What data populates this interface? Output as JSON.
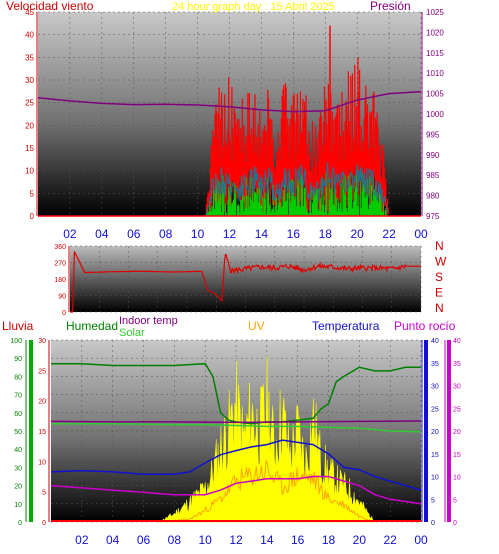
{
  "header": {
    "wind_title": "Velocidad viento",
    "graph_title": "24 hour graph day : 15 Abril 2025",
    "pressure_title": "Presión"
  },
  "colors": {
    "wind": "#ff0000",
    "wind_dark": "#2a6f8f",
    "wind_green": "#00cc00",
    "pressure": "#800080",
    "direction": "#e00000",
    "humidity": "#008000",
    "solar": "#33cc33",
    "uv": "#ffa500",
    "solar_fill": "#ffff00",
    "temperature": "#1010d0",
    "dewpoint": "#cc00cc",
    "indoor": "#800080",
    "rain": "#ff0000",
    "left_axis": "#cc0000",
    "right_axis": "#800080"
  },
  "legend3": {
    "rain": "Lluvia",
    "humidity": "Humedad",
    "indoor": "Indoor temp",
    "solar": "Solar",
    "uv": "UV",
    "temperature": "Temperatura",
    "dewpoint": "Punto rocío"
  },
  "chart_data": [
    {
      "type": "line",
      "title": "24 hour graph day : 15 Abril 2025",
      "x_ticks": [
        "02",
        "04",
        "06",
        "08",
        "10",
        "12",
        "14",
        "16",
        "18",
        "20",
        "22",
        "00"
      ],
      "y_left_ticks": [
        "0",
        "5",
        "10",
        "15",
        "20",
        "25",
        "30",
        "35",
        "40",
        "45"
      ],
      "y_right_ticks": [
        "975",
        "980",
        "985",
        "990",
        "995",
        "1000",
        "1005",
        "1010",
        "1015",
        "1020",
        "1025"
      ],
      "xlim": [
        0,
        24
      ],
      "ylim_left": [
        0,
        45
      ],
      "ylim_right": [
        975,
        1025
      ],
      "series": [
        {
          "name": "Velocidad viento",
          "axis": "left",
          "x": [
            0,
            10.5,
            11,
            11.5,
            12,
            12.5,
            13,
            13.5,
            14,
            14.5,
            15,
            15.5,
            16,
            16.5,
            17,
            17.5,
            18,
            18.5,
            19,
            19.5,
            20,
            20.5,
            21,
            21.5,
            22,
            24
          ],
          "y": [
            0,
            0,
            18,
            20,
            21,
            15,
            19,
            22,
            18,
            20,
            14,
            21,
            18,
            22,
            16,
            14,
            24,
            20,
            18,
            22,
            24,
            20,
            19,
            14,
            0,
            0
          ]
        },
        {
          "name": "Presión",
          "axis": "right",
          "x": [
            0,
            2,
            4,
            6,
            8,
            10,
            12,
            14,
            16,
            18,
            20,
            22,
            24
          ],
          "y": [
            1004,
            1003.2,
            1002.6,
            1002.3,
            1002.4,
            1002.2,
            1001.8,
            1001,
            1000.6,
            1000.8,
            1003.4,
            1005,
            1005.5
          ]
        }
      ]
    },
    {
      "type": "line",
      "y_ticks": [
        "0",
        "90",
        "180",
        "270",
        "360"
      ],
      "y_compass": [
        "N",
        "W",
        "S",
        "E",
        "N"
      ],
      "ylim": [
        0,
        360
      ],
      "series": [
        {
          "name": "Dirección viento",
          "x": [
            0,
            0.2,
            0.3,
            1,
            3,
            5,
            7,
            9,
            9.4,
            10,
            10.4,
            10.6,
            11,
            12,
            13,
            14,
            15,
            16,
            17,
            18,
            19,
            20,
            21,
            22,
            23,
            24
          ],
          "y": [
            0,
            0,
            330,
            215,
            220,
            222,
            218,
            222,
            120,
            95,
            60,
            320,
            225,
            235,
            245,
            240,
            250,
            230,
            250,
            245,
            235,
            240,
            240,
            235,
            250,
            250
          ]
        }
      ]
    },
    {
      "type": "line",
      "x_ticks": [
        "02",
        "04",
        "06",
        "08",
        "10",
        "12",
        "14",
        "16",
        "18",
        "20",
        "22",
        "00"
      ],
      "y_ticks_lluvia": [
        "0",
        "10",
        "20",
        "30",
        "40",
        "50",
        "60",
        "70",
        "80",
        "90",
        "100"
      ],
      "y_ticks_inner": [
        "0",
        "5",
        "10",
        "15",
        "20",
        "25",
        "30"
      ],
      "y_ticks_right": [
        "0",
        "5",
        "10",
        "15",
        "20",
        "25",
        "30",
        "35",
        "40"
      ],
      "xlim": [
        0,
        24
      ],
      "series": [
        {
          "name": "Humedad",
          "axis": "lluvia",
          "x": [
            0,
            2,
            4,
            6,
            8,
            10,
            10.5,
            11,
            11.5,
            12,
            13,
            14,
            15,
            16,
            17,
            17.5,
            18,
            18.5,
            19,
            20,
            21,
            22,
            23,
            24
          ],
          "y": [
            87,
            87,
            86,
            86,
            86,
            87,
            80,
            60,
            56,
            55,
            54,
            55,
            55,
            56,
            57,
            62,
            65,
            77,
            80,
            85,
            83,
            83,
            85,
            85
          ]
        },
        {
          "name": "Solar",
          "axis": "lluvia",
          "x": [
            0,
            4,
            8,
            10,
            12,
            14,
            16,
            18,
            20,
            22,
            24
          ],
          "y": [
            54,
            54,
            53.5,
            53.5,
            53,
            52.5,
            52.5,
            52,
            51.5,
            50,
            49.5
          ]
        },
        {
          "name": "Indoor temp",
          "axis": "right",
          "x": [
            0,
            4,
            8,
            12,
            16,
            20,
            24
          ],
          "y": [
            22.1,
            22,
            22,
            21.9,
            22,
            22.1,
            22.2
          ]
        },
        {
          "name": "Temperatura",
          "axis": "right",
          "x": [
            0,
            2,
            4,
            6,
            8,
            9,
            10,
            11,
            12,
            13,
            14,
            15,
            16,
            17,
            18,
            19,
            20,
            21,
            22,
            23,
            24
          ],
          "y": [
            11,
            11.3,
            11,
            10.5,
            10.5,
            11,
            13,
            14.8,
            15.7,
            16.5,
            17,
            18,
            17.5,
            17,
            15,
            12,
            11.5,
            10,
            9,
            8,
            7
          ]
        },
        {
          "name": "Punto rocío",
          "axis": "right",
          "x": [
            0,
            2,
            4,
            6,
            8,
            10,
            11,
            12,
            13,
            14,
            15,
            16,
            17,
            18,
            19,
            20,
            21,
            22,
            23,
            24
          ],
          "y": [
            8,
            7.5,
            7,
            6.5,
            6,
            6,
            7,
            8.5,
            9,
            9.5,
            9.5,
            9.5,
            10,
            10,
            9,
            8,
            6,
            5,
            4.5,
            4
          ]
        },
        {
          "name": "Solar",
          "axis": "lluvia",
          "fill": true,
          "x": [
            7,
            8,
            9,
            10,
            10.5,
            11,
            11.5,
            12,
            12.5,
            13,
            13.5,
            14,
            14.5,
            15,
            15.5,
            16,
            16.5,
            17,
            17.5,
            18,
            18.5,
            19,
            19.5,
            20,
            20.5,
            21
          ],
          "y": [
            0,
            5,
            12,
            20,
            30,
            45,
            55,
            70,
            50,
            65,
            55,
            72,
            45,
            65,
            40,
            55,
            35,
            62,
            38,
            30,
            25,
            22,
            18,
            12,
            6,
            0
          ]
        },
        {
          "name": "UV",
          "axis": "inner",
          "x": [
            7,
            9,
            10,
            11,
            12,
            13,
            14,
            15,
            16,
            17,
            18,
            19,
            20,
            21
          ],
          "y": [
            0,
            0.5,
            2,
            4,
            7,
            8,
            9,
            6,
            8,
            7.5,
            4,
            3,
            1,
            0
          ]
        }
      ]
    }
  ]
}
